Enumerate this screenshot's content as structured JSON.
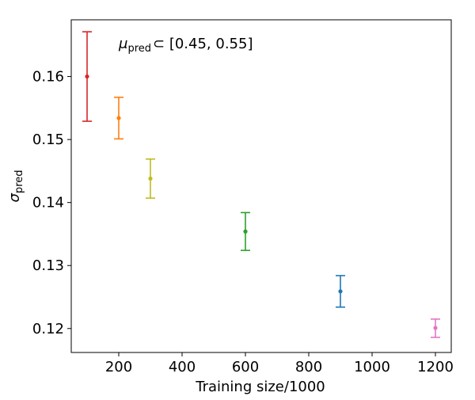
{
  "chart_data": {
    "type": "scatter",
    "error_bars": true,
    "xlabel": "Training size/1000",
    "ylabel": "σ",
    "ylabel_subscript": "pred",
    "annotation": {
      "mu": "μ",
      "subscript": "pred",
      "text": "⊂ [0.45, 0.55]"
    },
    "xlim": [
      50,
      1250
    ],
    "ylim": [
      0.1162,
      0.169
    ],
    "xticks": [
      200,
      400,
      600,
      800,
      1000,
      1200
    ],
    "xtick_labels": [
      "200",
      "400",
      "600",
      "800",
      "1000",
      "1200"
    ],
    "yticks": [
      0.12,
      0.13,
      0.14,
      0.15,
      0.16
    ],
    "ytick_labels": [
      "0.12",
      "0.13",
      "0.14",
      "0.15",
      "0.16"
    ],
    "grid": false,
    "points": [
      {
        "x": 100,
        "y": 0.16,
        "err_low": 0.1529,
        "err_high": 0.1671,
        "color": "#d62728"
      },
      {
        "x": 200,
        "y": 0.1534,
        "err_low": 0.1501,
        "err_high": 0.1567,
        "color": "#ff7f0e"
      },
      {
        "x": 300,
        "y": 0.1438,
        "err_low": 0.1407,
        "err_high": 0.1469,
        "color": "#bcbd22"
      },
      {
        "x": 600,
        "y": 0.1354,
        "err_low": 0.1324,
        "err_high": 0.1384,
        "color": "#2ca02c"
      },
      {
        "x": 900,
        "y": 0.1259,
        "err_low": 0.1234,
        "err_high": 0.1284,
        "color": "#1f77b4"
      },
      {
        "x": 1200,
        "y": 0.1201,
        "err_low": 0.1186,
        "err_high": 0.1215,
        "color": "#e377c2"
      }
    ]
  }
}
